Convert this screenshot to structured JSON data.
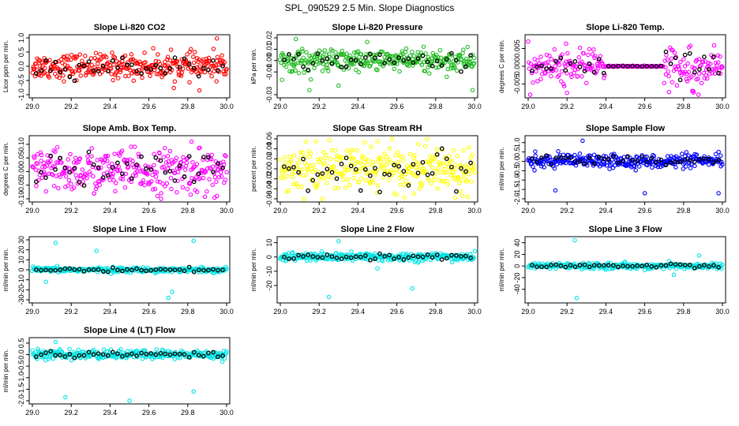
{
  "title": "SPL_090529  2.5 Min. Slope Diagnostics",
  "colors": {
    "red": "#ff0000",
    "green": "#22bb22",
    "magenta": "#ff00ff",
    "yellow": "#ffff00",
    "blue": "#0000ff",
    "cyan": "#00e5e5",
    "black": "#000000"
  },
  "chart_data": [
    {
      "type": "scatter",
      "title": "Slope Li-820 CO2",
      "ylabel": "Licor ppm per min.",
      "color": "#ff0000",
      "xlim": [
        29.0,
        30.0
      ],
      "ylim": [
        -1.0,
        1.0
      ],
      "xticks": [
        "29.0",
        "29.2",
        "29.4",
        "29.6",
        "29.8",
        "30.0"
      ],
      "yticks": [
        "-1.0",
        "-0.5",
        "0.0",
        "0.5",
        "1.0"
      ],
      "spread": 0.22,
      "n": 320,
      "outliers": [
        [
          29.95,
          0.98
        ],
        [
          29.86,
          -0.85
        ]
      ]
    },
    {
      "type": "scatter",
      "title": "Slope Li-820 Pressure",
      "ylabel": "kPa per min.",
      "color": "#22bb22",
      "xlim": [
        29.0,
        30.0
      ],
      "ylim": [
        -0.03,
        0.02
      ],
      "xticks": [
        "29.0",
        "29.2",
        "29.4",
        "29.6",
        "29.8",
        "30.0"
      ],
      "yticks": [
        "-0.03",
        "-0.01",
        "0.00",
        "0.01",
        "0.02"
      ],
      "spread": 0.005,
      "n": 320,
      "outliers": [
        [
          29.15,
          -0.026
        ],
        [
          29.3,
          -0.022
        ],
        [
          29.99,
          -0.026
        ],
        [
          29.08,
          0.019
        ]
      ]
    },
    {
      "type": "scatter",
      "title": "Slope Li-820 Temp.",
      "ylabel": "degrees C per min.",
      "color": "#ff00ff",
      "xlim": [
        29.0,
        30.0
      ],
      "ylim": [
        -0.008,
        0.008
      ],
      "xticks": [
        "29.0",
        "29.2",
        "29.4",
        "29.6",
        "29.8",
        "30.0"
      ],
      "yticks": [
        "-0.005",
        "0.000",
        "0.005"
      ],
      "spread": 0.0025,
      "n": 300,
      "gap": [
        29.4,
        29.7
      ],
      "outliers": [
        [
          29.2,
          -0.0075
        ],
        [
          29.85,
          -0.007
        ]
      ]
    },
    {
      "type": "scatter",
      "title": "Slope Amb. Box Temp.",
      "ylabel": "degrees C per min.",
      "color": "#ff00ff",
      "xlim": [
        29.0,
        30.0
      ],
      "ylim": [
        -0.1,
        0.12
      ],
      "xticks": [
        "29.0",
        "29.2",
        "29.4",
        "29.6",
        "29.8",
        "30.0"
      ],
      "yticks": [
        "-0.10",
        "-0.05",
        "0.00",
        "0.05",
        "0.10"
      ],
      "spread": 0.04,
      "n": 320,
      "outliers": [
        [
          29.82,
          0.11
        ],
        [
          29.95,
          -0.09
        ]
      ]
    },
    {
      "type": "scatter",
      "title": "Slope Gas Stream RH",
      "ylabel": "percent per min.",
      "color": "#ffff00",
      "xlim": [
        29.0,
        30.0
      ],
      "ylim": [
        -0.06,
        0.06
      ],
      "xticks": [
        "29.0",
        "29.2",
        "29.4",
        "29.6",
        "29.8",
        "30.0"
      ],
      "yticks": [
        "-0.06",
        "-0.04",
        "-0.02",
        "0.00",
        "0.02",
        "0.04",
        "0.06"
      ],
      "spread": 0.022,
      "n": 320,
      "outliers": [
        [
          29.9,
          -0.058
        ],
        [
          29.5,
          0.055
        ]
      ]
    },
    {
      "type": "scatter",
      "title": "Slope Sample Flow",
      "ylabel": "ml/min per min.",
      "color": "#0000ff",
      "xlim": [
        29.0,
        30.0
      ],
      "ylim": [
        -2.0,
        1.2
      ],
      "xticks": [
        "29.0",
        "29.2",
        "29.4",
        "29.6",
        "29.8",
        "30.0"
      ],
      "yticks": [
        "-2.0",
        "-1.5",
        "-1.0",
        "-0.5",
        "0.0",
        "0.5",
        "1.0"
      ],
      "spread": 0.18,
      "n": 320,
      "outliers": [
        [
          29.28,
          1.1
        ],
        [
          29.14,
          -1.55
        ],
        [
          29.6,
          -1.7
        ],
        [
          29.98,
          -1.7
        ]
      ]
    },
    {
      "type": "scatter",
      "title": "Slope Line 1 Flow",
      "ylabel": "ml/min per min.",
      "color": "#00e5e5",
      "xlim": [
        29.0,
        30.0
      ],
      "ylim": [
        -30,
        30
      ],
      "xticks": [
        "29.0",
        "29.2",
        "29.4",
        "29.6",
        "29.8",
        "30.0"
      ],
      "yticks": [
        "-30",
        "-20",
        "-10",
        "0",
        "10",
        "20",
        "30"
      ],
      "spread": 1.2,
      "n": 300,
      "outliers": [
        [
          29.12,
          27
        ],
        [
          29.33,
          19
        ],
        [
          29.7,
          -28
        ],
        [
          29.83,
          29
        ],
        [
          29.07,
          -12
        ],
        [
          29.72,
          -22
        ]
      ]
    },
    {
      "type": "scatter",
      "title": "Slope Line 2 Flow",
      "ylabel": "ml/min per min.",
      "color": "#00e5e5",
      "xlim": [
        29.0,
        30.0
      ],
      "ylim": [
        -30,
        12
      ],
      "xticks": [
        "29.0",
        "29.2",
        "29.4",
        "29.6",
        "29.8",
        "30.0"
      ],
      "yticks": [
        "-20",
        "-10",
        "0",
        "10"
      ],
      "spread": 1.5,
      "n": 300,
      "outliers": [
        [
          29.25,
          -28
        ],
        [
          29.3,
          11
        ],
        [
          29.68,
          -22
        ],
        [
          29.5,
          -8
        ]
      ]
    },
    {
      "type": "scatter",
      "title": "Slope Line 3 Flow",
      "ylabel": "ml/min per min.",
      "color": "#00e5e5",
      "xlim": [
        29.0,
        30.0
      ],
      "ylim": [
        -58,
        45
      ],
      "xticks": [
        "29.0",
        "29.2",
        "29.4",
        "29.6",
        "29.8",
        "30.0"
      ],
      "yticks": [
        "-40",
        "-20",
        "0",
        "20",
        "40"
      ],
      "spread": 2.5,
      "n": 300,
      "outliers": [
        [
          29.25,
          -55
        ],
        [
          29.24,
          44
        ],
        [
          29.75,
          -15
        ],
        [
          29.88,
          18
        ]
      ]
    },
    {
      "type": "scatter",
      "title": "Slope Line 4 (LT) Flow",
      "ylabel": "ml/min per min.",
      "color": "#00e5e5",
      "xlim": [
        29.0,
        30.0
      ],
      "ylim": [
        -2.0,
        0.6
      ],
      "xticks": [
        "29.0",
        "29.2",
        "29.4",
        "29.6",
        "29.8",
        "30.0"
      ],
      "yticks": [
        "-2.0",
        "-1.5",
        "-1.0",
        "-0.5",
        "0.0",
        "0.5"
      ],
      "spread": 0.1,
      "n": 300,
      "outliers": [
        [
          29.17,
          -1.85
        ],
        [
          29.5,
          -2.0
        ],
        [
          29.83,
          -1.6
        ],
        [
          29.12,
          0.55
        ]
      ]
    }
  ]
}
